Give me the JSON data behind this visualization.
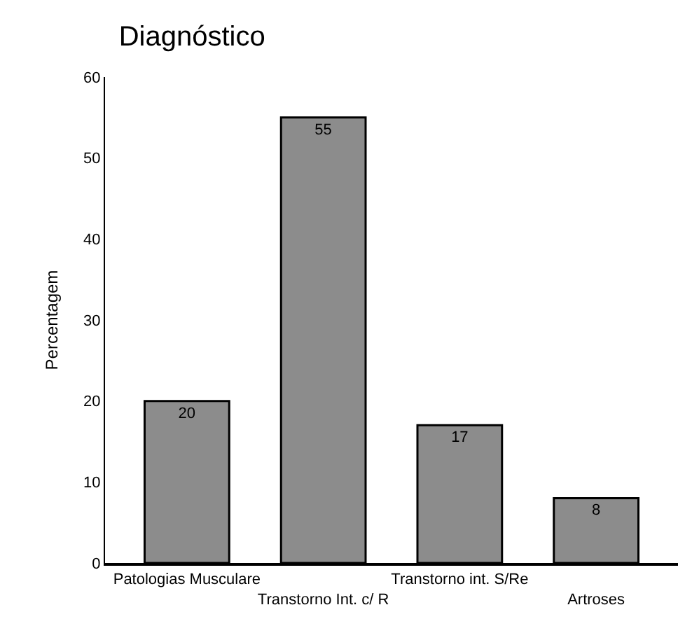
{
  "chart_data": {
    "type": "bar",
    "title": "Diagnóstico",
    "ylabel": "Percentagem",
    "categories": [
      "Patologias Musculare",
      "Transtorno Int. c/ R",
      "Transtorno int. S/Re",
      "Artroses"
    ],
    "values": [
      20,
      55,
      17,
      8
    ],
    "color": "#8c8c8c",
    "ylim": [
      0,
      60
    ],
    "yticks": [
      0,
      10,
      20,
      30,
      40,
      50,
      60
    ],
    "data_labels": true
  }
}
